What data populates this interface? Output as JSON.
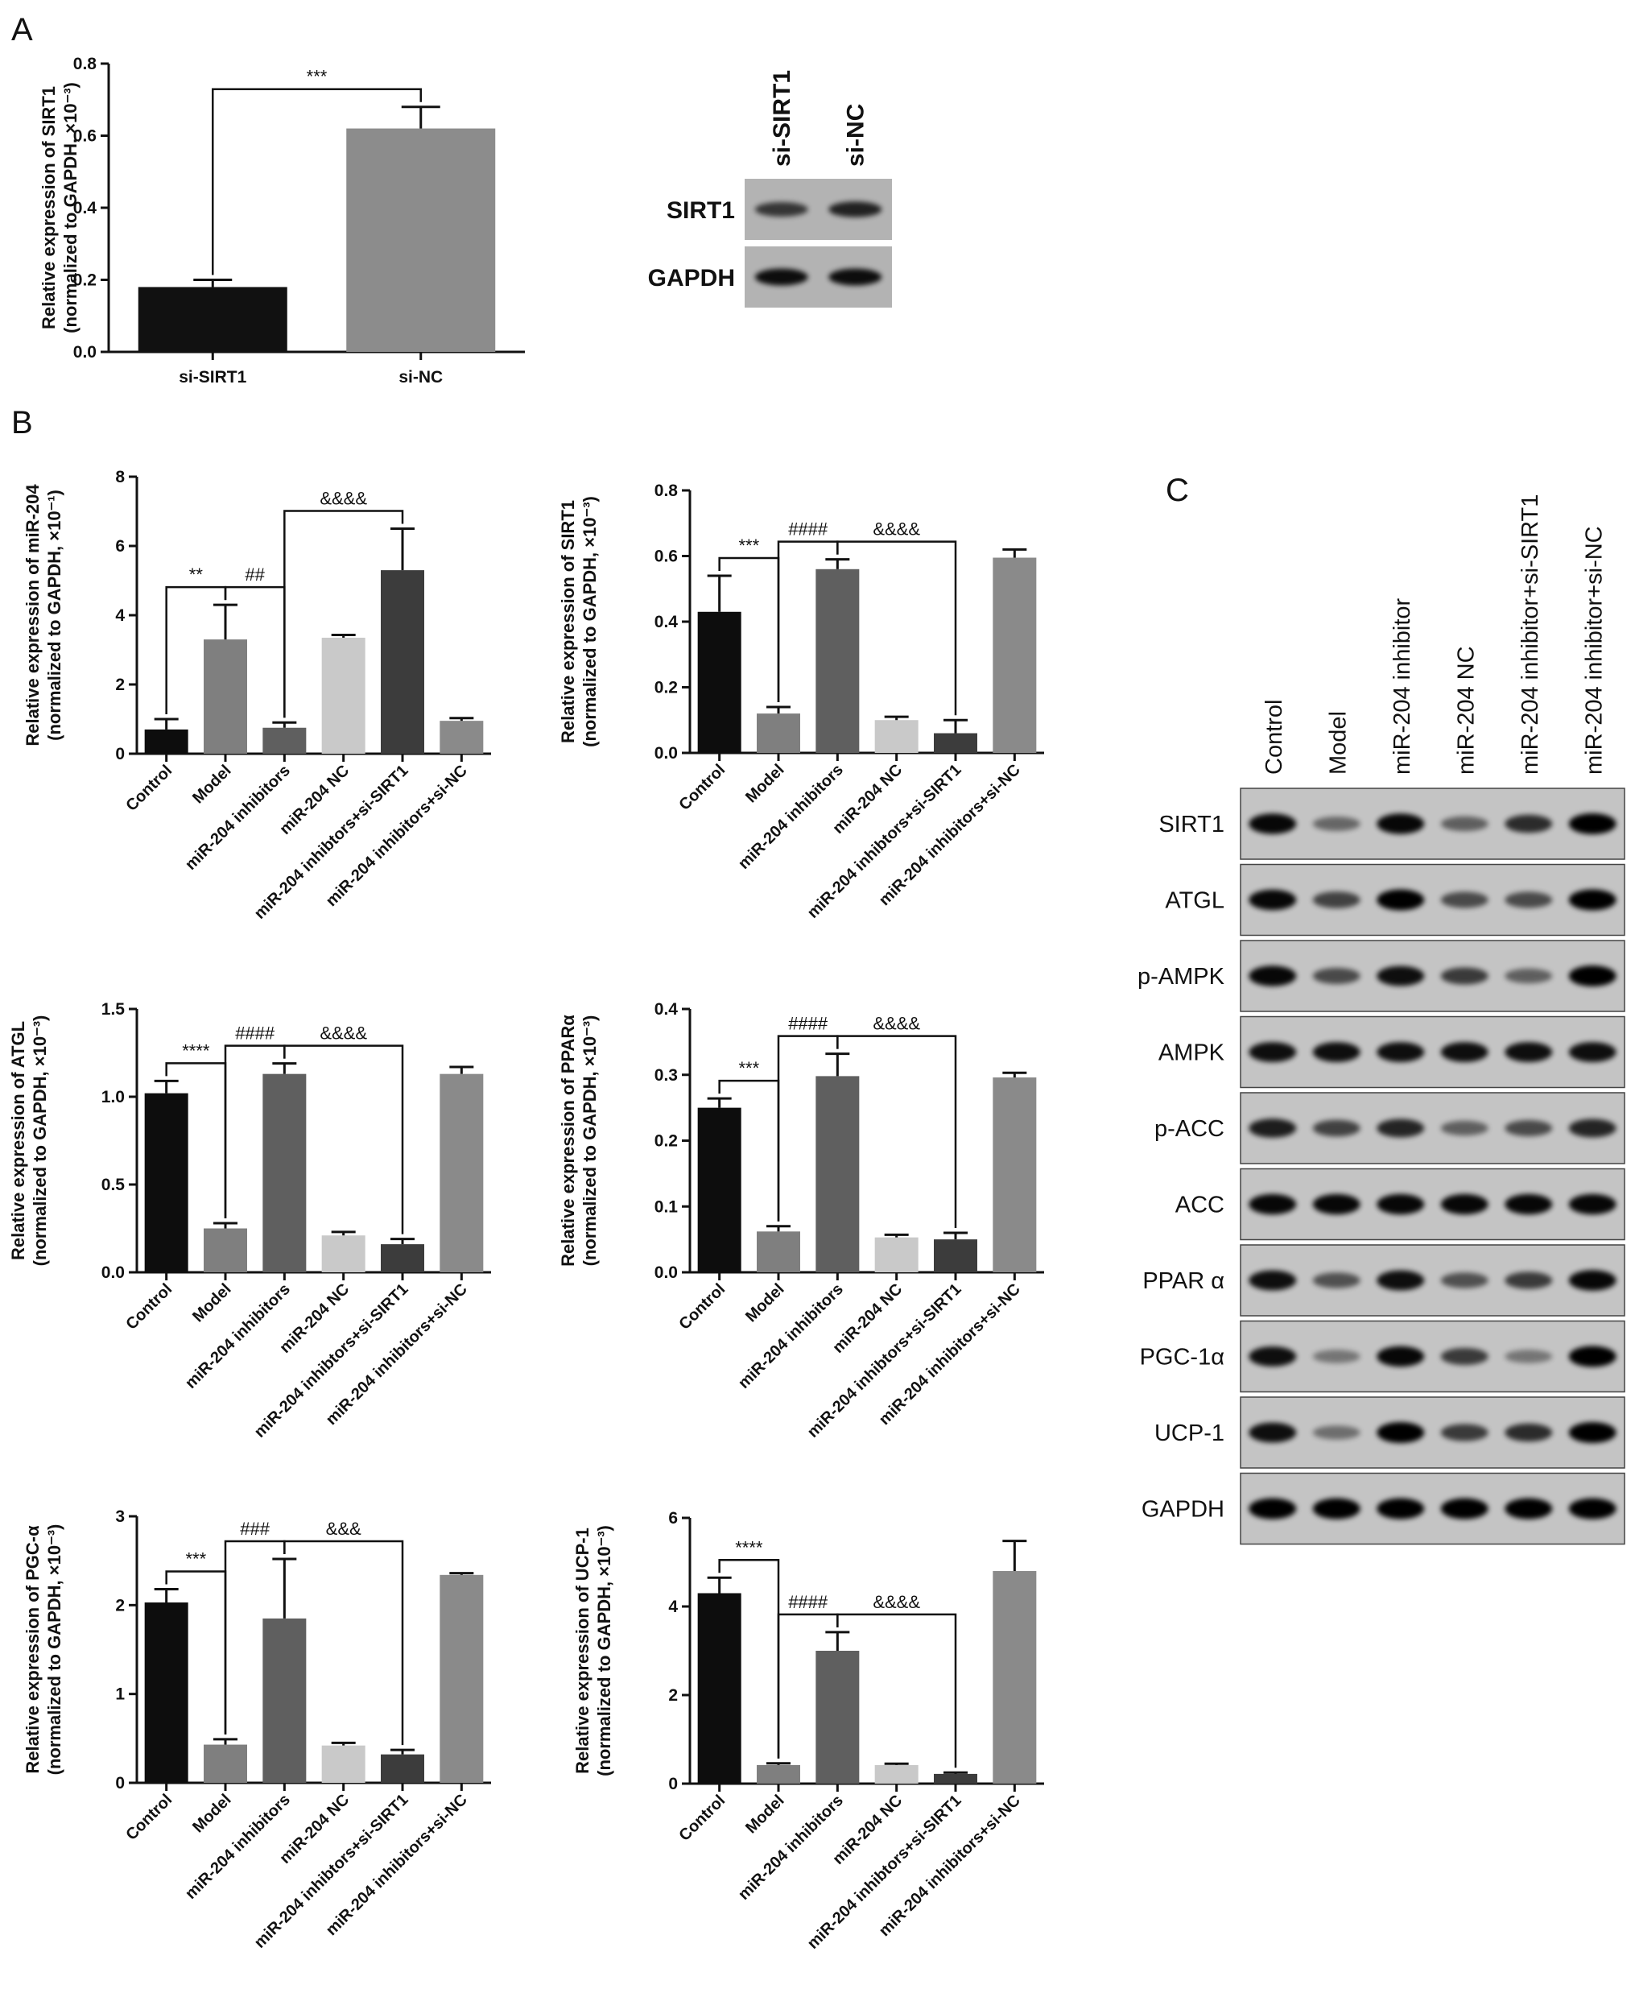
{
  "panels": {
    "A": "A",
    "B": "B",
    "C": "C"
  },
  "chart_data": [
    {
      "id": "A",
      "type": "bar",
      "categories": [
        "si-SIRT1",
        "si-NC"
      ],
      "values": [
        0.18,
        0.62
      ],
      "errors": [
        0.02,
        0.06
      ],
      "colors": [
        "#111111",
        "#8c8c8c"
      ],
      "ylabel": [
        "Relative expression of SIRT1",
        "(normalized to GAPDH, ×10⁻³)"
      ],
      "ylim": [
        0,
        0.8
      ],
      "yticks": [
        "0.0",
        "0.2",
        "0.4",
        "0.6",
        "0.8"
      ],
      "grid": false,
      "significance": [
        {
          "from": 0,
          "to": 1,
          "label": "***"
        }
      ]
    },
    {
      "id": "B1",
      "type": "bar",
      "categories": [
        "Control",
        "Model",
        "miR-204 inhibitors",
        "miR-204 NC",
        "miR-204 inhibtors+si-SIRT1",
        "miR-204 inhibitors+si-NC"
      ],
      "values": [
        0.7,
        3.3,
        0.75,
        3.35,
        5.3,
        0.95
      ],
      "errors": [
        0.3,
        1.0,
        0.15,
        0.08,
        1.2,
        0.08
      ],
      "colors": [
        "#0d0d0d",
        "#7f7f7f",
        "#5f5f5f",
        "#c9c9c9",
        "#3c3c3c",
        "#8a8a8a"
      ],
      "ylabel": [
        "Relative expression of miR-204",
        "(normalized to GAPDH, ×10⁻¹)"
      ],
      "ylim": [
        0,
        8
      ],
      "yticks": [
        "0",
        "2",
        "4",
        "6",
        "8"
      ],
      "grid": false,
      "significance": [
        {
          "from": 0,
          "to": 1,
          "label": "**"
        },
        {
          "from": 1,
          "to": 2,
          "label": "##"
        },
        {
          "from": 2,
          "to": 4,
          "label": "&&&&"
        }
      ]
    },
    {
      "id": "B2",
      "type": "bar",
      "categories": [
        "Control",
        "Model",
        "miR-204 inhibitors",
        "miR-204 NC",
        "miR-204 inhibtors+si-SIRT1",
        "miR-204 inhibitors+si-NC"
      ],
      "values": [
        0.43,
        0.12,
        0.56,
        0.1,
        0.06,
        0.595
      ],
      "errors": [
        0.11,
        0.02,
        0.03,
        0.01,
        0.04,
        0.025
      ],
      "colors": [
        "#0d0d0d",
        "#7f7f7f",
        "#5f5f5f",
        "#c9c9c9",
        "#3c3c3c",
        "#8a8a8a"
      ],
      "ylabel": [
        "Relative expression of SIRT1",
        "(normalized to GAPDH, ×10⁻³)"
      ],
      "ylim": [
        0,
        0.8
      ],
      "yticks": [
        "0.0",
        "0.2",
        "0.4",
        "0.6",
        "0.8"
      ],
      "grid": false,
      "significance": [
        {
          "from": 0,
          "to": 1,
          "label": "***"
        },
        {
          "from": 1,
          "to": 2,
          "label": "####"
        },
        {
          "from": 2,
          "to": 4,
          "label": "&&&&"
        }
      ]
    },
    {
      "id": "B3",
      "type": "bar",
      "categories": [
        "Control",
        "Model",
        "miR-204 inhibitors",
        "miR-204 NC",
        "miR-204 inhibtors+si-SIRT1",
        "miR-204 inhibitors+si-NC"
      ],
      "values": [
        1.02,
        0.25,
        1.13,
        0.21,
        0.16,
        1.13
      ],
      "errors": [
        0.07,
        0.03,
        0.06,
        0.02,
        0.03,
        0.04
      ],
      "colors": [
        "#0d0d0d",
        "#7f7f7f",
        "#5f5f5f",
        "#c9c9c9",
        "#3c3c3c",
        "#8a8a8a"
      ],
      "ylabel": [
        "Relative expression of ATGL",
        "(normalized to GAPDH, ×10⁻³)"
      ],
      "ylim": [
        0,
        1.5
      ],
      "yticks": [
        "0.0",
        "0.5",
        "1.0",
        "1.5"
      ],
      "grid": false,
      "significance": [
        {
          "from": 0,
          "to": 1,
          "label": "****"
        },
        {
          "from": 1,
          "to": 2,
          "label": "####"
        },
        {
          "from": 2,
          "to": 4,
          "label": "&&&&"
        }
      ]
    },
    {
      "id": "B4",
      "type": "bar",
      "categories": [
        "Control",
        "Model",
        "miR-204 inhibitors",
        "miR-204 NC",
        "miR-204 inhibtors+si-SIRT1",
        "miR-204 inhibitors+si-NC"
      ],
      "values": [
        0.25,
        0.062,
        0.298,
        0.053,
        0.05,
        0.296
      ],
      "errors": [
        0.014,
        0.008,
        0.034,
        0.004,
        0.01,
        0.007
      ],
      "colors": [
        "#0d0d0d",
        "#7f7f7f",
        "#5f5f5f",
        "#c9c9c9",
        "#3c3c3c",
        "#8a8a8a"
      ],
      "ylabel": [
        "Relative expression of PPARα",
        "(normalized to GAPDH, ×10⁻³)"
      ],
      "ylim": [
        0,
        0.4
      ],
      "yticks": [
        "0.0",
        "0.1",
        "0.2",
        "0.3",
        "0.4"
      ],
      "grid": false,
      "significance": [
        {
          "from": 0,
          "to": 1,
          "label": "***"
        },
        {
          "from": 1,
          "to": 2,
          "label": "####"
        },
        {
          "from": 2,
          "to": 4,
          "label": "&&&&"
        }
      ]
    },
    {
      "id": "B5",
      "type": "bar",
      "categories": [
        "Control",
        "Model",
        "miR-204 inhibitors",
        "miR-204 NC",
        "miR-204 inhibtors+si-SIRT1",
        "miR-204 inhibitors+si-NC"
      ],
      "values": [
        2.03,
        0.43,
        1.85,
        0.42,
        0.32,
        2.34
      ],
      "errors": [
        0.15,
        0.06,
        0.67,
        0.03,
        0.05,
        0.02
      ],
      "colors": [
        "#0d0d0d",
        "#7f7f7f",
        "#5f5f5f",
        "#c9c9c9",
        "#3c3c3c",
        "#8a8a8a"
      ],
      "ylabel": [
        "Relative expression of PGC-α",
        "(normalized to GAPDH, ×10⁻³)"
      ],
      "ylim": [
        0,
        3
      ],
      "yticks": [
        "0",
        "1",
        "2",
        "3"
      ],
      "grid": false,
      "significance": [
        {
          "from": 0,
          "to": 1,
          "label": "***"
        },
        {
          "from": 1,
          "to": 2,
          "label": "###"
        },
        {
          "from": 2,
          "to": 4,
          "label": "&&&"
        }
      ]
    },
    {
      "id": "B6",
      "type": "bar",
      "categories": [
        "Control",
        "Model",
        "miR-204 inhibitors",
        "miR-204 NC",
        "miR-204 inhibtors+si-SIRT1",
        "miR-204 inhibitors+si-NC"
      ],
      "values": [
        4.3,
        0.42,
        3.0,
        0.42,
        0.22,
        4.8
      ],
      "errors": [
        0.35,
        0.04,
        0.42,
        0.03,
        0.03,
        0.68
      ],
      "colors": [
        "#0d0d0d",
        "#7f7f7f",
        "#5f5f5f",
        "#c9c9c9",
        "#3c3c3c",
        "#8a8a8a"
      ],
      "ylabel": [
        "Relative expression of UCP-1",
        "(normalized to GAPDH, ×10⁻³)"
      ],
      "ylim": [
        0,
        6
      ],
      "yticks": [
        "0",
        "2",
        "4",
        "6"
      ],
      "grid": false,
      "significance": [
        {
          "from": 0,
          "to": 1,
          "label": "****"
        },
        {
          "from": 1,
          "to": 2,
          "label": "####"
        },
        {
          "from": 2,
          "to": 4,
          "label": "&&&&"
        }
      ]
    }
  ],
  "blot_A": {
    "lanes": [
      "si-SIRT1",
      "si-NC"
    ],
    "rows": [
      {
        "label": "SIRT1",
        "intensity": [
          0.6,
          0.75
        ]
      },
      {
        "label": "GAPDH",
        "intensity": [
          0.9,
          0.9
        ]
      }
    ]
  },
  "blot_C": {
    "lanes": [
      "Control",
      "Model",
      "miR-204 inhibitor",
      "miR-204 NC",
      "miR-204 inhibitor+si-SIRT1",
      "miR-204 inhibitor+si-NC"
    ],
    "rows": [
      {
        "label": "SIRT1",
        "intensity": [
          0.95,
          0.3,
          0.95,
          0.35,
          0.7,
          1.0
        ]
      },
      {
        "label": "ATGL",
        "intensity": [
          0.95,
          0.55,
          1.0,
          0.5,
          0.5,
          1.0
        ]
      },
      {
        "label": "p-AMPK",
        "intensity": [
          0.95,
          0.5,
          0.9,
          0.6,
          0.35,
          1.0
        ]
      },
      {
        "label": "AMPK",
        "intensity": [
          0.9,
          0.9,
          0.9,
          0.9,
          0.9,
          0.9
        ]
      },
      {
        "label": "p-ACC",
        "intensity": [
          0.8,
          0.55,
          0.75,
          0.35,
          0.5,
          0.75
        ]
      },
      {
        "label": "ACC",
        "intensity": [
          0.95,
          0.95,
          0.95,
          0.95,
          0.95,
          0.95
        ]
      },
      {
        "label": "PPAR α",
        "intensity": [
          0.9,
          0.45,
          0.9,
          0.45,
          0.6,
          0.95
        ]
      },
      {
        "label": "PGC-1α",
        "intensity": [
          0.9,
          0.2,
          0.95,
          0.6,
          0.2,
          1.0
        ]
      },
      {
        "label": "UCP-1",
        "intensity": [
          0.9,
          0.25,
          1.0,
          0.6,
          0.7,
          1.0
        ]
      },
      {
        "label": "GAPDH",
        "intensity": [
          1.0,
          1.0,
          1.0,
          1.0,
          1.0,
          1.0
        ]
      }
    ]
  }
}
